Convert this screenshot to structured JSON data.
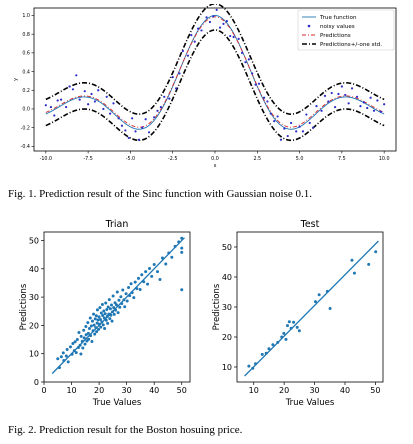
{
  "caption1": "Fig. 1.  Prediction result of the Sinc function with Gaussian noise 0.1.",
  "caption2": "Fig. 2.  Prediction result for the Boston hosuing price.",
  "colors": {
    "true_function": "#1f77b4",
    "noisy_values": "#2c2cc8",
    "predictions": "#d62728",
    "band": "#000000",
    "scatter": "#1f77b4",
    "fit_line": "#1f77b4"
  },
  "chart_data": [
    {
      "type": "line",
      "title": "",
      "xlabel": "x",
      "ylabel": "y",
      "xlim": [
        -10.7,
        10.7
      ],
      "ylim": [
        -0.45,
        1.08
      ],
      "xticks": [
        "-10.0",
        "-7.5",
        "-5.0",
        "-2.5",
        "0.0",
        "2.5",
        "5.0",
        "7.5",
        "10.0"
      ],
      "yticks": [
        "-0.4",
        "-0.2",
        "0.0",
        "0.2",
        "0.4",
        "0.6",
        "0.8",
        "1.0"
      ],
      "legend": "top-right",
      "series": [
        {
          "name": "True function",
          "function": "sin(x)/x",
          "x_range": [
            -10,
            10
          ]
        },
        {
          "name": "noisy values",
          "noise_std": 0.1
        },
        {
          "name": "Predictions",
          "function": "sin(x)/x",
          "x_range": [
            -10,
            10
          ]
        },
        {
          "name": "Predictions+/-one std.",
          "offset": 0.14
        }
      ],
      "noisy_points": [
        [
          -10,
          0.04
        ],
        [
          -9.7,
          0.02
        ],
        [
          -9.5,
          -0.07
        ],
        [
          -9.3,
          0.09
        ],
        [
          -9.1,
          0.1
        ],
        [
          -8.8,
          0.02
        ],
        [
          -8.6,
          0.24
        ],
        [
          -8.4,
          0.21
        ],
        [
          -8.2,
          0.36
        ],
        [
          -8.0,
          0.1
        ],
        [
          -7.7,
          0.19
        ],
        [
          -7.5,
          0.05
        ],
        [
          -7.3,
          0.16
        ],
        [
          -7.1,
          0.08
        ],
        [
          -6.9,
          0.2
        ],
        [
          -6.6,
          0.0
        ],
        [
          -6.4,
          0.13
        ],
        [
          -6.2,
          -0.05
        ],
        [
          -6.0,
          0.06
        ],
        [
          -5.7,
          -0.1
        ],
        [
          -5.5,
          -0.18
        ],
        [
          -5.3,
          -0.23
        ],
        [
          -5.1,
          -0.31
        ],
        [
          -4.9,
          -0.1
        ],
        [
          -4.7,
          -0.24
        ],
        [
          -4.5,
          -0.33
        ],
        [
          -4.3,
          -0.2
        ],
        [
          -4.1,
          -0.11
        ],
        [
          -3.9,
          -0.25
        ],
        [
          -3.6,
          -0.09
        ],
        [
          -3.4,
          -0.02
        ],
        [
          -3.2,
          0.02
        ],
        [
          -3.0,
          0.13
        ],
        [
          -2.7,
          0.11
        ],
        [
          -2.5,
          0.34
        ],
        [
          -2.3,
          0.22
        ],
        [
          -2.1,
          0.38
        ],
        [
          -1.9,
          0.62
        ],
        [
          -1.6,
          0.57
        ],
        [
          -1.4,
          0.79
        ],
        [
          -1.2,
          0.72
        ],
        [
          -1.0,
          0.86
        ],
        [
          -0.8,
          0.84
        ],
        [
          -0.5,
          0.98
        ],
        [
          -0.3,
          0.93
        ],
        [
          -0.1,
          0.99
        ],
        [
          0.1,
          1.06
        ],
        [
          0.3,
          0.87
        ],
        [
          0.5,
          0.91
        ],
        [
          0.7,
          0.94
        ],
        [
          0.9,
          0.78
        ],
        [
          1.1,
          0.77
        ],
        [
          1.4,
          0.75
        ],
        [
          1.6,
          0.6
        ],
        [
          1.8,
          0.5
        ],
        [
          2.0,
          0.53
        ],
        [
          2.2,
          0.38
        ],
        [
          2.4,
          0.26
        ],
        [
          2.6,
          0.27
        ],
        [
          2.9,
          0.12
        ],
        [
          3.1,
          0.08
        ],
        [
          3.3,
          -0.05
        ],
        [
          3.5,
          -0.13
        ],
        [
          3.7,
          -0.08
        ],
        [
          3.9,
          -0.33
        ],
        [
          4.1,
          -0.21
        ],
        [
          4.3,
          -0.29
        ],
        [
          4.5,
          -0.15
        ],
        [
          4.8,
          -0.24
        ],
        [
          5.0,
          -0.19
        ],
        [
          5.2,
          -0.24
        ],
        [
          5.4,
          -0.06
        ],
        [
          5.6,
          -0.15
        ],
        [
          5.8,
          -0.2
        ],
        [
          6.0,
          0.03
        ],
        [
          6.3,
          -0.02
        ],
        [
          6.5,
          0.14
        ],
        [
          6.7,
          0.08
        ],
        [
          6.9,
          0.17
        ],
        [
          7.1,
          0.02
        ],
        [
          7.3,
          0.16
        ],
        [
          7.5,
          0.24
        ],
        [
          7.7,
          0.15
        ],
        [
          7.9,
          0.06
        ],
        [
          8.1,
          0.22
        ],
        [
          8.4,
          0.13
        ],
        [
          8.6,
          0.03
        ],
        [
          8.8,
          0.07
        ],
        [
          9.0,
          0.01
        ],
        [
          9.2,
          0.12
        ],
        [
          9.4,
          -0.02
        ],
        [
          9.6,
          0.09
        ],
        [
          9.8,
          -0.03
        ],
        [
          10.0,
          0.05
        ]
      ]
    },
    {
      "type": "scatter",
      "title": "Trian",
      "xlabel": "True Values",
      "ylabel": "Predictions",
      "xlim": [
        0,
        53
      ],
      "ylim": [
        0,
        53
      ],
      "xticks": [
        0,
        10,
        20,
        30,
        40,
        50
      ],
      "yticks": [
        0,
        10,
        20,
        30,
        40,
        50
      ],
      "fit_line": [
        [
          3,
          3
        ],
        [
          51,
          51
        ]
      ],
      "points": [
        [
          5.0,
          8.2
        ],
        [
          5.6,
          5.1
        ],
        [
          6.3,
          8.9
        ],
        [
          7.0,
          10.3
        ],
        [
          7.2,
          7.6
        ],
        [
          8.1,
          9.2
        ],
        [
          8.4,
          11.5
        ],
        [
          8.8,
          7.1
        ],
        [
          9.6,
          12.4
        ],
        [
          10.2,
          9.8
        ],
        [
          10.5,
          13.6
        ],
        [
          11.0,
          11.1
        ],
        [
          11.3,
          14.2
        ],
        [
          11.7,
          10.4
        ],
        [
          12.1,
          15.0
        ],
        [
          12.5,
          12.2
        ],
        [
          12.7,
          17.5
        ],
        [
          13.1,
          13.0
        ],
        [
          13.4,
          9.9
        ],
        [
          13.5,
          16.1
        ],
        [
          13.9,
          14.4
        ],
        [
          14.1,
          12.0
        ],
        [
          14.4,
          18.3
        ],
        [
          14.6,
          15.6
        ],
        [
          14.9,
          13.4
        ],
        [
          15.2,
          19.6
        ],
        [
          15.3,
          16.7
        ],
        [
          15.6,
          14.5
        ],
        [
          15.9,
          21.0
        ],
        [
          16.1,
          17.2
        ],
        [
          16.2,
          15.1
        ],
        [
          16.5,
          18.9
        ],
        [
          16.8,
          22.6
        ],
        [
          16.9,
          16.4
        ],
        [
          17.2,
          19.8
        ],
        [
          17.4,
          14.3
        ],
        [
          17.6,
          21.5
        ],
        [
          17.8,
          18.1
        ],
        [
          18.0,
          24.0
        ],
        [
          18.2,
          20.1
        ],
        [
          18.4,
          16.9
        ],
        [
          18.6,
          22.3
        ],
        [
          18.8,
          19.2
        ],
        [
          19.0,
          23.4
        ],
        [
          19.1,
          17.8
        ],
        [
          19.3,
          20.8
        ],
        [
          19.4,
          25.5
        ],
        [
          19.6,
          21.9
        ],
        [
          19.8,
          18.6
        ],
        [
          20.0,
          23.0
        ],
        [
          20.1,
          20.4
        ],
        [
          20.3,
          26.3
        ],
        [
          20.5,
          22.1
        ],
        [
          20.6,
          19.4
        ],
        [
          20.8,
          24.4
        ],
        [
          21.0,
          21.2
        ],
        [
          21.2,
          27.4
        ],
        [
          21.3,
          23.5
        ],
        [
          21.5,
          20.2
        ],
        [
          21.7,
          25.1
        ],
        [
          21.9,
          22.6
        ],
        [
          22.0,
          18.9
        ],
        [
          22.2,
          24.1
        ],
        [
          22.4,
          27.9
        ],
        [
          22.6,
          21.8
        ],
        [
          22.8,
          25.6
        ],
        [
          23.0,
          23.2
        ],
        [
          23.1,
          20.7
        ],
        [
          23.3,
          26.5
        ],
        [
          23.5,
          24.0
        ],
        [
          23.7,
          29.1
        ],
        [
          23.9,
          22.4
        ],
        [
          24.1,
          25.9
        ],
        [
          24.3,
          23.6
        ],
        [
          24.5,
          27.2
        ],
        [
          24.7,
          21.5
        ],
        [
          24.9,
          24.8
        ],
        [
          25.1,
          30.4
        ],
        [
          25.3,
          26.3
        ],
        [
          25.5,
          23.9
        ],
        [
          25.8,
          28.0
        ],
        [
          26.0,
          25.4
        ],
        [
          26.3,
          27.3
        ],
        [
          26.6,
          31.8
        ],
        [
          26.9,
          24.5
        ],
        [
          27.2,
          28.9
        ],
        [
          27.5,
          26.4
        ],
        [
          27.9,
          30.1
        ],
        [
          28.2,
          27.7
        ],
        [
          28.6,
          32.5
        ],
        [
          29.0,
          29.0
        ],
        [
          29.3,
          26.6
        ],
        [
          29.8,
          31.2
        ],
        [
          30.2,
          28.6
        ],
        [
          30.7,
          33.4
        ],
        [
          31.1,
          30.5
        ],
        [
          31.6,
          34.7
        ],
        [
          32.0,
          31.6
        ],
        [
          32.6,
          29.8
        ],
        [
          33.1,
          35.3
        ],
        [
          33.7,
          33.0
        ],
        [
          34.3,
          36.6
        ],
        [
          34.9,
          32.7
        ],
        [
          35.5,
          37.9
        ],
        [
          36.2,
          35.4
        ],
        [
          36.9,
          39.0
        ],
        [
          37.6,
          34.6
        ],
        [
          38.3,
          40.1
        ],
        [
          39.1,
          37.3
        ],
        [
          40.0,
          41.5
        ],
        [
          41.2,
          39.0
        ],
        [
          42.1,
          36.2
        ],
        [
          43.0,
          43.8
        ],
        [
          44.2,
          41.7
        ],
        [
          45.3,
          45.6
        ],
        [
          46.4,
          44.1
        ],
        [
          47.6,
          47.9
        ],
        [
          48.9,
          49.5
        ],
        [
          50.0,
          50.8
        ],
        [
          50.0,
          47.3
        ],
        [
          50.0,
          45.8
        ],
        [
          50.0,
          32.6
        ]
      ]
    },
    {
      "type": "scatter",
      "title": "Test",
      "xlabel": "True Values",
      "ylabel": "Predictions",
      "xlim": [
        4.5,
        52.5
      ],
      "ylim": [
        5,
        55
      ],
      "xticks": [
        10,
        20,
        30,
        40,
        50
      ],
      "yticks": [
        10,
        20,
        30,
        40,
        50
      ],
      "fit_line": [
        [
          7,
          7
        ],
        [
          51,
          52
        ]
      ],
      "points": [
        [
          8.4,
          10.3
        ],
        [
          9.7,
          9.6
        ],
        [
          10.6,
          11.1
        ],
        [
          12.8,
          14.2
        ],
        [
          14.1,
          14.6
        ],
        [
          15.0,
          16.1
        ],
        [
          16.3,
          17.4
        ],
        [
          17.9,
          18.2
        ],
        [
          19.2,
          20.0
        ],
        [
          19.9,
          21.2
        ],
        [
          20.6,
          19.2
        ],
        [
          21.1,
          23.8
        ],
        [
          21.7,
          25.1
        ],
        [
          22.3,
          22.9
        ],
        [
          23.1,
          24.9
        ],
        [
          24.3,
          23.2
        ],
        [
          25.0,
          22.1
        ],
        [
          30.3,
          31.8
        ],
        [
          31.5,
          34.1
        ],
        [
          34.2,
          35.2
        ],
        [
          35.1,
          29.5
        ],
        [
          42.3,
          45.6
        ],
        [
          43.1,
          41.3
        ],
        [
          47.8,
          44.2
        ],
        [
          50.1,
          48.4
        ]
      ]
    }
  ]
}
